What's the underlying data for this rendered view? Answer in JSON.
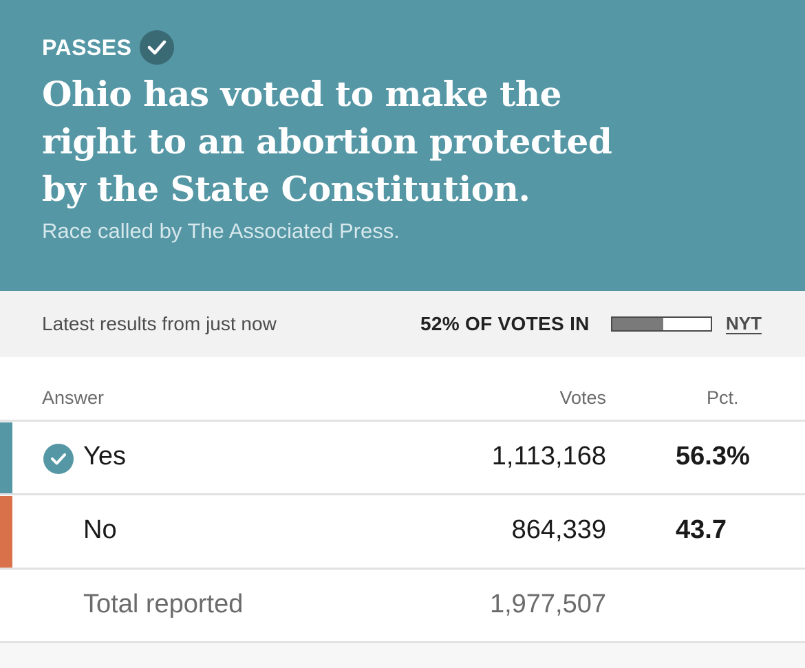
{
  "banner": {
    "status": "PASSES",
    "headline": "Ohio has voted to make the right to an abortion protected by the State Constitution.",
    "called_by": "Race called by The Associated Press.",
    "color": "#5597a5"
  },
  "subheader": {
    "latest": "Latest results from just now",
    "votes_in": "52% OF VOTES IN",
    "votes_in_fraction": 0.52,
    "source_link": "NYT"
  },
  "table": {
    "columns": [
      "Answer",
      "Votes",
      "Pct."
    ],
    "rows": [
      {
        "answer": "Yes",
        "votes": "1,113,168",
        "pct": "56.3%",
        "winner": true,
        "color": "#5597a5"
      },
      {
        "answer": "No",
        "votes": "864,339",
        "pct": "43.7",
        "winner": false,
        "color": "#d9714a"
      }
    ],
    "total": {
      "label": "Total reported",
      "votes": "1,977,507"
    }
  }
}
